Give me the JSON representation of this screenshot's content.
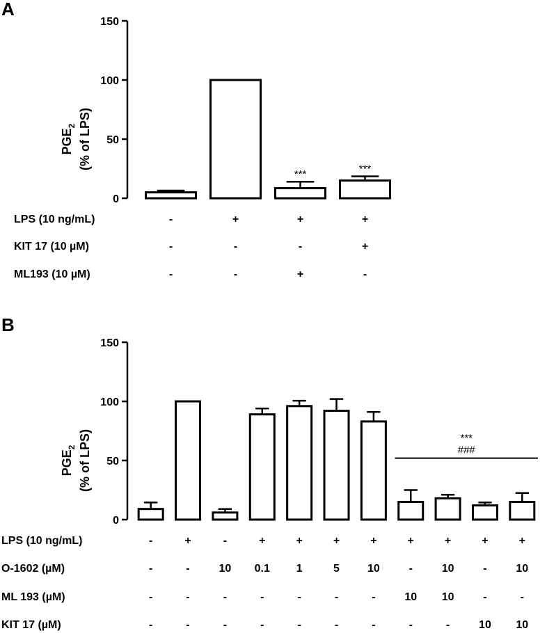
{
  "chart_data": [
    {
      "type": "bar",
      "panel": "A",
      "ylabel": "PGE",
      "ylabel_sub": "2",
      "ylabel2": "(% of LPS)",
      "ylim": [
        0,
        150
      ],
      "yticks": [
        0,
        50,
        100,
        150
      ],
      "values": [
        5,
        100,
        8.5,
        15
      ],
      "errors": [
        1.5,
        0,
        5.5,
        3.5
      ],
      "annotations": [
        "",
        "",
        "***",
        "***"
      ],
      "conditions": [
        {
          "label": "LPS (10 ng/mL)",
          "values": [
            "-",
            "+",
            "+",
            "+"
          ]
        },
        {
          "label": "KIT 17 (10 µM)",
          "values": [
            "-",
            "-",
            "-",
            "+"
          ]
        },
        {
          "label": "ML193 (10 µM)",
          "values": [
            "-",
            "-",
            "+",
            "-"
          ]
        }
      ]
    },
    {
      "type": "bar",
      "panel": "B",
      "ylabel": "PGE",
      "ylabel_sub": "2",
      "ylabel2": "(% of LPS)",
      "ylim": [
        0,
        150
      ],
      "yticks": [
        0,
        50,
        100,
        150
      ],
      "values": [
        9,
        100,
        6,
        89,
        96,
        92,
        83,
        15,
        18,
        12,
        15
      ],
      "errors": [
        5.5,
        0,
        3,
        5,
        4.5,
        10,
        8,
        10,
        3,
        2.5,
        7.5
      ],
      "group_annotation": {
        "from": 7,
        "to": 10,
        "y": 52,
        "labels": [
          "***",
          "###"
        ]
      },
      "conditions": [
        {
          "label": "LPS (10 ng/mL)",
          "values": [
            "-",
            "+",
            "-",
            "+",
            "+",
            "+",
            "+",
            "+",
            "+",
            "+",
            "+"
          ]
        },
        {
          "label": "O-1602 (µM)",
          "values": [
            "-",
            "-",
            "10",
            "0.1",
            "1",
            "5",
            "10",
            "-",
            "10",
            "-",
            "10"
          ]
        },
        {
          "label": "ML 193 (µM)",
          "values": [
            "-",
            "-",
            "-",
            "-",
            "-",
            "-",
            "-",
            "10",
            "10",
            "-",
            "-"
          ]
        },
        {
          "label": "KIT 17 (µM)",
          "values": [
            "-",
            "-",
            "-",
            "-",
            "-",
            "-",
            "-",
            "-",
            "-",
            "10",
            "10"
          ]
        }
      ]
    }
  ]
}
